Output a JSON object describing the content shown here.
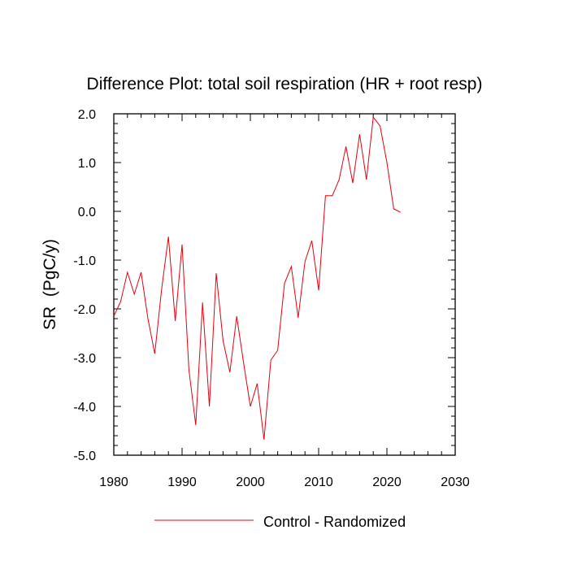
{
  "chart_data": {
    "type": "line",
    "title": "Difference Plot: total soil respiration (HR + root resp)",
    "xlabel": "",
    "ylabel": "SR  (PgC/y)",
    "xlim": [
      1980,
      2030
    ],
    "ylim": [
      -5.0,
      2.0
    ],
    "xticks": [
      1980,
      1990,
      2000,
      2010,
      2020,
      2030
    ],
    "xtick_labels": [
      "1980",
      "1990",
      "2000",
      "2010",
      "2020",
      "2030"
    ],
    "yticks": [
      -5.0,
      -4.0,
      -3.0,
      -2.0,
      -1.0,
      0.0,
      1.0,
      2.0
    ],
    "ytick_labels": [
      "-5.0",
      "-4.0",
      "-3.0",
      "-2.0",
      "-1.0",
      "0.0",
      "1.0",
      "2.0"
    ],
    "legend_position": "bottom",
    "grid": false,
    "series": [
      {
        "name": "Control - Randomized",
        "color": "#e3000f",
        "x": [
          1980,
          1981,
          1982,
          1983,
          1984,
          1985,
          1986,
          1987,
          1988,
          1989,
          1990,
          1991,
          1992,
          1993,
          1994,
          1995,
          1996,
          1997,
          1998,
          1999,
          2000,
          2001,
          2002,
          2003,
          2004,
          2005,
          2006,
          2007,
          2008,
          2009,
          2010,
          2011,
          2012,
          2013,
          2014,
          2015,
          2016,
          2017,
          2018,
          2019,
          2020,
          2021,
          2022
        ],
        "values": [
          -2.15,
          -1.85,
          -1.25,
          -1.7,
          -1.25,
          -2.2,
          -2.92,
          -1.6,
          -0.52,
          -2.25,
          -0.68,
          -3.25,
          -4.38,
          -1.87,
          -4.0,
          -1.27,
          -2.65,
          -3.3,
          -2.15,
          -3.1,
          -4.0,
          -3.53,
          -4.68,
          -3.05,
          -2.85,
          -1.48,
          -1.13,
          -2.18,
          -1.03,
          -0.6,
          -1.62,
          0.32,
          0.32,
          0.65,
          1.33,
          0.58,
          1.58,
          0.65,
          1.93,
          1.75,
          1.0,
          0.05,
          -0.02
        ]
      }
    ]
  }
}
